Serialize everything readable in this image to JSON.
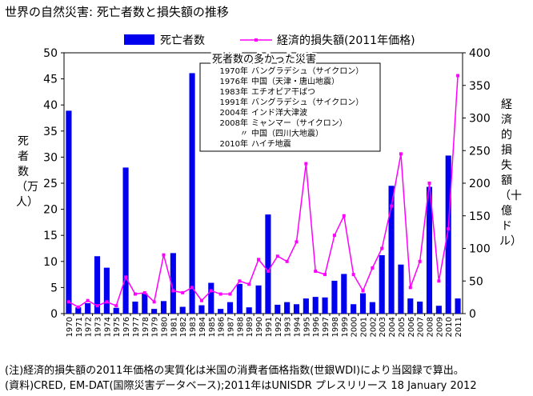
{
  "page": {
    "title": "世界の自然災害: 死亡者数と損失額の推移",
    "notes": [
      "(注)経済的損失額の2011年価格の実質化は米国の消費者価格指数(世銀WDI)により当図録で算出。",
      "(資料)CRED, EM-DAT(国際災害データベース);2011年はUNISDR プレスリリース 18 January 2012"
    ]
  },
  "chart_data": {
    "type": "bar+line",
    "categories": [
      "1970",
      "1971",
      "1972",
      "1973",
      "1974",
      "1975",
      "1976",
      "1977",
      "1978",
      "1979",
      "1980",
      "1981",
      "1982",
      "1983",
      "1984",
      "1985",
      "1986",
      "1987",
      "1988",
      "1989",
      "1990",
      "1991",
      "1992",
      "1993",
      "1994",
      "1995",
      "1996",
      "1997",
      "1998",
      "1999",
      "2000",
      "2001",
      "2002",
      "2003",
      "2004",
      "2005",
      "2006",
      "2007",
      "2008",
      "2009",
      "2010",
      "2011"
    ],
    "series": [
      {
        "name": "死者数",
        "type": "bar",
        "axis": "left",
        "color": "#0000ee",
        "values": [
          38.9,
          1.2,
          2.0,
          11.0,
          8.8,
          1.1,
          28.0,
          2.3,
          3.9,
          0.9,
          2.4,
          11.6,
          1.3,
          46.1,
          1.6,
          5.9,
          0.9,
          2.2,
          5.7,
          1.2,
          5.4,
          19.0,
          1.7,
          2.2,
          1.8,
          2.9,
          3.2,
          3.1,
          6.3,
          7.6,
          1.8,
          3.9,
          2.2,
          11.2,
          24.5,
          9.4,
          2.9,
          2.3,
          24.3,
          1.5,
          30.3,
          2.9
        ]
      },
      {
        "name": "経済的損失額(2011年価格)",
        "type": "line",
        "axis": "right",
        "color": "#ff00ff",
        "values": [
          18,
          10,
          20,
          12,
          18,
          12,
          56,
          30,
          32,
          18,
          90,
          35,
          32,
          40,
          20,
          35,
          30,
          30,
          50,
          45,
          83,
          65,
          88,
          80,
          110,
          230,
          65,
          60,
          120,
          150,
          60,
          35,
          70,
          100,
          165,
          245,
          40,
          80,
          200,
          50,
          130,
          365
        ]
      }
    ],
    "y_left": {
      "label": "死者数（万人）",
      "min": 0,
      "max": 50,
      "ticks": [
        0,
        5,
        10,
        15,
        20,
        25,
        30,
        35,
        40,
        45,
        50
      ]
    },
    "y_right": {
      "label": "経済的損失額（十億ドル）",
      "min": 0,
      "max": 400,
      "ticks": [
        0,
        50,
        100,
        150,
        200,
        250,
        300,
        350,
        400
      ]
    },
    "legend": {
      "position": "top",
      "items": [
        "死亡者数",
        "経済的損失額(2011年価格)"
      ]
    },
    "annotation": {
      "title": "死者数の多かった災害",
      "rows": [
        {
          "year": "1970年",
          "event": "バングラデシュ（サイクロン）"
        },
        {
          "year": "1976年",
          "event": "中国（天津・唐山地震）"
        },
        {
          "year": "1983年",
          "event": "エチオピア干ばつ"
        },
        {
          "year": "1991年",
          "event": "バングラデシュ（サイクロン）"
        },
        {
          "year": "2004年",
          "event": "インド洋大津波"
        },
        {
          "year": "2008年",
          "event": "ミャンマー（サイクロン）"
        },
        {
          "year": "〃",
          "event": "中国（四川大地震）"
        },
        {
          "year": "2010年",
          "event": "ハイチ地震"
        }
      ]
    }
  }
}
